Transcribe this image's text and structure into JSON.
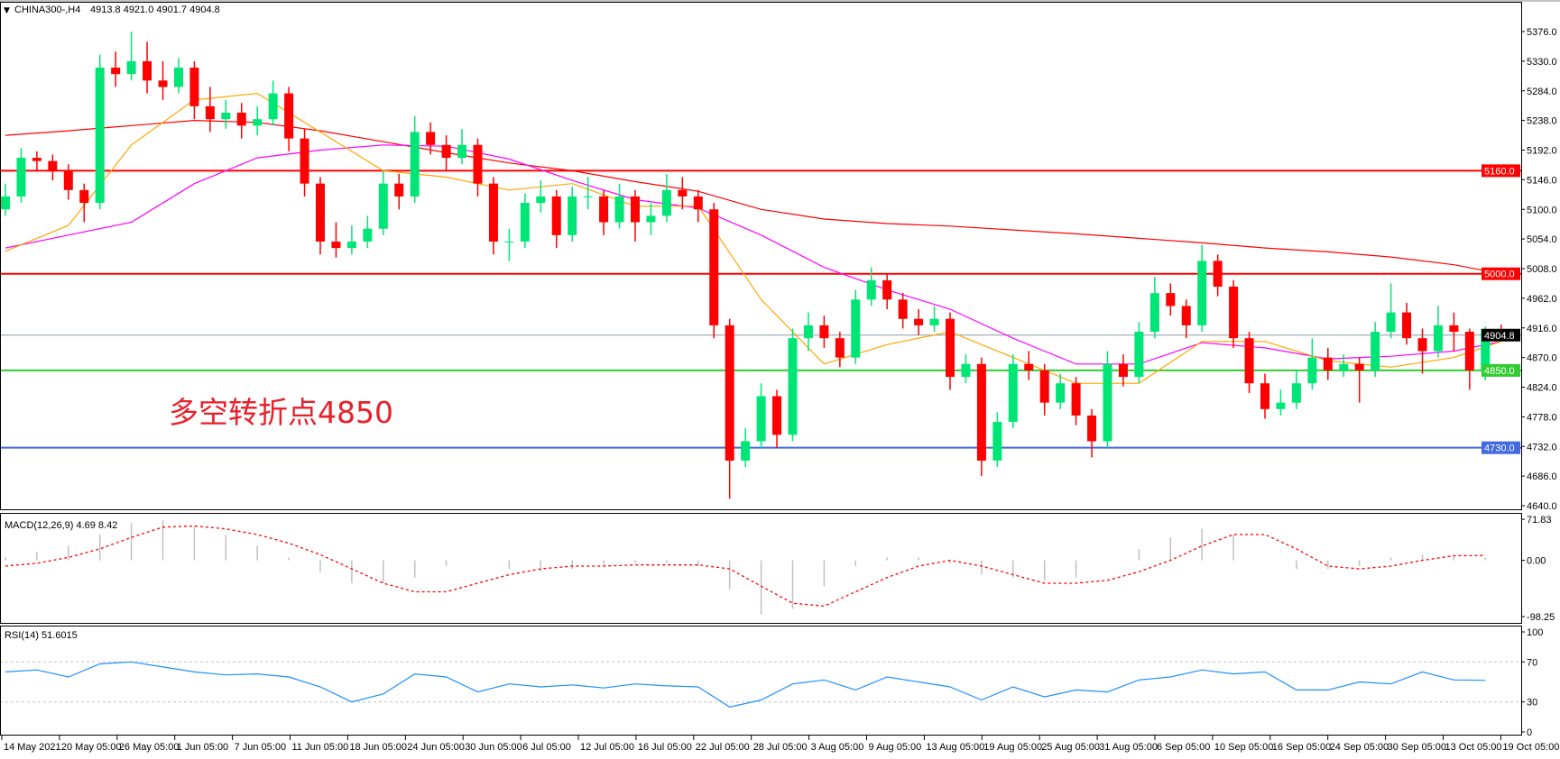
{
  "header": {
    "arrow_icon": "triangle-down-icon",
    "symbol": "CHINA300-,H4",
    "ohlc": "4913.8 4921.0 4901.7 4904.8"
  },
  "annotation": "多空转折点4850",
  "colors": {
    "bull": "#00e676",
    "bear": "#ff0000",
    "ma_fast": "#ffa500",
    "ma_mid": "#ff00ff",
    "ma_slow": "#ff0000",
    "rsi": "#1e90ff",
    "macd_hist": "#c0c0c0",
    "macd_signal": "#ff0000"
  },
  "chart_data": [
    {
      "type": "candlestick",
      "title": "CHINA300-,H4",
      "ylim": [
        4640,
        5376
      ],
      "y_ticks": [
        "5376.0",
        "5330.0",
        "5284.0",
        "5238.0",
        "5192.0",
        "5146.0",
        "5100.0",
        "5054.0",
        "5008.0",
        "4962.0",
        "4916.0",
        "4870.0",
        "4824.0",
        "4778.0",
        "4732.0",
        "4686.0",
        "4640.0"
      ],
      "x_ticks": [
        "14 May 2021",
        "20 May 05:00",
        "26 May 05:00",
        "1 Jun 05:00",
        "7 Jun 05:00",
        "11 Jun 05:00",
        "18 Jun 05:00",
        "24 Jun 05:00",
        "30 Jun 05:00",
        "6 Jul 05:00",
        "12 Jul 05:00",
        "16 Jul 05:00",
        "22 Jul 05:00",
        "28 Jul 05:00",
        "3 Aug 05:00",
        "9 Aug 05:00",
        "13 Aug 05:00",
        "19 Aug 05:00",
        "25 Aug 05:00",
        "31 Aug 05:00",
        "6 Sep 05:00",
        "10 Sep 05:00",
        "16 Sep 05:00",
        "24 Sep 05:00",
        "30 Sep 05:00",
        "13 Oct 05:00",
        "19 Oct 05:00"
      ],
      "levels": [
        {
          "value": 5160.0,
          "label": "5160.0",
          "color": "#ff0000"
        },
        {
          "value": 5000.0,
          "label": "5000.0",
          "color": "#ff0000"
        },
        {
          "value": 4904.8,
          "label": "4904.8",
          "color": "#8a9aa8",
          "label_bg": "#000000"
        },
        {
          "value": 4850.0,
          "label": "4850.0",
          "color": "#32cd32"
        },
        {
          "value": 4730.0,
          "label": "4730.0",
          "color": "#4169e1"
        }
      ],
      "candles": [
        [
          5100,
          5140,
          5090,
          5120
        ],
        [
          5120,
          5195,
          5110,
          5180
        ],
        [
          5180,
          5190,
          5160,
          5175
        ],
        [
          5175,
          5185,
          5145,
          5160
        ],
        [
          5160,
          5170,
          5115,
          5130
        ],
        [
          5130,
          5140,
          5080,
          5110
        ],
        [
          5110,
          5340,
          5100,
          5320
        ],
        [
          5320,
          5345,
          5290,
          5310
        ],
        [
          5310,
          5376,
          5300,
          5330
        ],
        [
          5330,
          5360,
          5280,
          5300
        ],
        [
          5300,
          5330,
          5270,
          5290
        ],
        [
          5290,
          5335,
          5280,
          5320
        ],
        [
          5320,
          5330,
          5240,
          5260
        ],
        [
          5260,
          5290,
          5220,
          5240
        ],
        [
          5240,
          5270,
          5225,
          5250
        ],
        [
          5250,
          5265,
          5210,
          5230
        ],
        [
          5230,
          5260,
          5215,
          5240
        ],
        [
          5240,
          5300,
          5230,
          5280
        ],
        [
          5280,
          5290,
          5190,
          5210
        ],
        [
          5210,
          5225,
          5120,
          5140
        ],
        [
          5140,
          5150,
          5030,
          5050
        ],
        [
          5050,
          5080,
          5025,
          5040
        ],
        [
          5040,
          5075,
          5030,
          5050
        ],
        [
          5050,
          5090,
          5040,
          5070
        ],
        [
          5070,
          5160,
          5060,
          5140
        ],
        [
          5140,
          5155,
          5100,
          5120
        ],
        [
          5120,
          5245,
          5110,
          5220
        ],
        [
          5220,
          5235,
          5185,
          5200
        ],
        [
          5200,
          5215,
          5160,
          5180
        ],
        [
          5180,
          5225,
          5170,
          5200
        ],
        [
          5200,
          5210,
          5120,
          5140
        ],
        [
          5140,
          5150,
          5030,
          5050
        ],
        [
          5050,
          5070,
          5020,
          5050
        ],
        [
          5050,
          5125,
          5040,
          5110
        ],
        [
          5110,
          5145,
          5095,
          5120
        ],
        [
          5120,
          5130,
          5040,
          5060
        ],
        [
          5060,
          5135,
          5050,
          5120
        ],
        [
          5120,
          5150,
          5100,
          5120
        ],
        [
          5120,
          5130,
          5060,
          5080
        ],
        [
          5080,
          5140,
          5070,
          5120
        ],
        [
          5120,
          5130,
          5050,
          5080
        ],
        [
          5080,
          5110,
          5060,
          5090
        ],
        [
          5090,
          5155,
          5080,
          5130
        ],
        [
          5130,
          5150,
          5100,
          5120
        ],
        [
          5120,
          5130,
          5080,
          5100
        ],
        [
          5100,
          5110,
          4900,
          4920
        ],
        [
          4920,
          4930,
          4651,
          4710
        ],
        [
          4710,
          4760,
          4700,
          4740
        ],
        [
          4740,
          4830,
          4730,
          4810
        ],
        [
          4810,
          4820,
          4730,
          4750
        ],
        [
          4750,
          4915,
          4740,
          4900
        ],
        [
          4900,
          4940,
          4880,
          4920
        ],
        [
          4920,
          4935,
          4885,
          4900
        ],
        [
          4900,
          4910,
          4855,
          4870
        ],
        [
          4870,
          4975,
          4860,
          4960
        ],
        [
          4960,
          5010,
          4950,
          4990
        ],
        [
          4990,
          5000,
          4945,
          4960
        ],
        [
          4960,
          4970,
          4915,
          4930
        ],
        [
          4930,
          4945,
          4905,
          4920
        ],
        [
          4920,
          4950,
          4910,
          4930
        ],
        [
          4930,
          4940,
          4820,
          4840
        ],
        [
          4840,
          4875,
          4830,
          4860
        ],
        [
          4860,
          4870,
          4686,
          4710
        ],
        [
          4710,
          4785,
          4700,
          4770
        ],
        [
          4770,
          4875,
          4760,
          4860
        ],
        [
          4860,
          4880,
          4835,
          4850
        ],
        [
          4850,
          4860,
          4780,
          4800
        ],
        [
          4800,
          4845,
          4790,
          4830
        ],
        [
          4830,
          4840,
          4765,
          4780
        ],
        [
          4780,
          4790,
          4715,
          4740
        ],
        [
          4740,
          4880,
          4730,
          4860
        ],
        [
          4860,
          4875,
          4825,
          4840
        ],
        [
          4840,
          4925,
          4830,
          4910
        ],
        [
          4910,
          4995,
          4900,
          4970
        ],
        [
          4970,
          4985,
          4935,
          4950
        ],
        [
          4950,
          4960,
          4900,
          4920
        ],
        [
          4920,
          5045,
          4910,
          5020
        ],
        [
          5020,
          5030,
          4965,
          4980
        ],
        [
          4980,
          4990,
          4885,
          4900
        ],
        [
          4900,
          4910,
          4815,
          4830
        ],
        [
          4830,
          4845,
          4775,
          4790
        ],
        [
          4790,
          4820,
          4780,
          4800
        ],
        [
          4800,
          4850,
          4790,
          4830
        ],
        [
          4830,
          4900,
          4820,
          4870
        ],
        [
          4870,
          4885,
          4835,
          4850
        ],
        [
          4850,
          4875,
          4840,
          4860
        ],
        [
          4860,
          4870,
          4800,
          4850
        ],
        [
          4850,
          4925,
          4840,
          4910
        ],
        [
          4910,
          4985,
          4900,
          4940
        ],
        [
          4940,
          4955,
          4890,
          4900
        ],
        [
          4900,
          4915,
          4845,
          4880
        ],
        [
          4880,
          4950,
          4870,
          4920
        ],
        [
          4920,
          4940,
          4880,
          4910
        ],
        [
          4910,
          4915,
          4820,
          4850
        ],
        [
          4850,
          4918,
          4835,
          4913.8
        ],
        [
          4913.8,
          4921.0,
          4901.7,
          4904.8
        ]
      ],
      "moving_averages": {
        "sample_every_candles": 4,
        "fast": [
          5035,
          5075,
          5200,
          5270,
          5280,
          5220,
          5160,
          5150,
          5130,
          5140,
          5105,
          5105,
          4960,
          4860,
          4890,
          4910,
          4870,
          4830,
          4830,
          4895,
          4895,
          4865,
          4855,
          4870,
          4895
        ],
        "mid": [
          5040,
          5060,
          5080,
          5140,
          5180,
          5192,
          5200,
          5198,
          5178,
          5145,
          5115,
          5102,
          5060,
          5010,
          4975,
          4945,
          4900,
          4860,
          4860,
          4893,
          4885,
          4868,
          4872,
          4880,
          4895
        ],
        "slow": [
          5215,
          5222,
          5230,
          5238,
          5235,
          5222,
          5205,
          5188,
          5172,
          5160,
          5143,
          5128,
          5100,
          5085,
          5078,
          5074,
          5068,
          5062,
          5055,
          5048,
          5040,
          5034,
          5026,
          5014,
          5000
        ]
      }
    },
    {
      "type": "bar+line",
      "title": "MACD(12,26,9) 4.69 8.42",
      "ylim": [
        -98.25,
        71.83
      ],
      "y_ticks": [
        "71.83",
        "0.00",
        "-98.25"
      ],
      "sample_every_candles": 2,
      "histogram": [
        5,
        15,
        25,
        45,
        65,
        70,
        60,
        45,
        25,
        5,
        -20,
        -40,
        -40,
        -30,
        -10,
        0,
        -15,
        -20,
        -15,
        -10,
        -5,
        -5,
        -10,
        -50,
        -95,
        -85,
        -45,
        -10,
        5,
        5,
        -5,
        -25,
        -30,
        -35,
        -30,
        0,
        20,
        40,
        55,
        45,
        0,
        -15,
        -15,
        -10,
        5,
        10,
        10,
        4.69
      ],
      "signal": [
        -10,
        -5,
        5,
        20,
        40,
        58,
        60,
        55,
        45,
        30,
        10,
        -15,
        -40,
        -55,
        -55,
        -40,
        -25,
        -15,
        -10,
        -10,
        -8,
        -8,
        -8,
        -15,
        -45,
        -75,
        -80,
        -55,
        -30,
        -10,
        0,
        -10,
        -25,
        -40,
        -40,
        -35,
        -20,
        0,
        25,
        45,
        45,
        20,
        -10,
        -15,
        -10,
        0,
        8,
        8.42
      ]
    },
    {
      "type": "line",
      "title": "RSI(14) 51.6015",
      "ylim": [
        0,
        100
      ],
      "y_ticks": [
        "100",
        "70",
        "30",
        "0"
      ],
      "levels": [
        70,
        30
      ],
      "sample_every_candles": 2,
      "values": [
        60,
        62,
        55,
        68,
        70,
        65,
        60,
        57,
        58,
        55,
        45,
        30,
        38,
        58,
        55,
        40,
        48,
        45,
        47,
        44,
        48,
        46,
        45,
        25,
        32,
        48,
        52,
        42,
        55,
        50,
        45,
        32,
        45,
        35,
        42,
        40,
        52,
        55,
        62,
        58,
        60,
        42,
        42,
        50,
        48,
        60,
        52,
        51.6015
      ]
    }
  ]
}
